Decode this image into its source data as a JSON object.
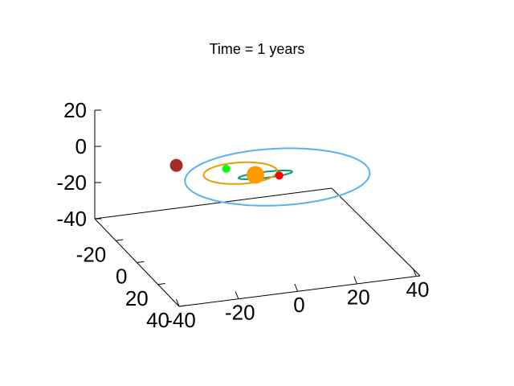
{
  "chart_data": {
    "type": "scatter",
    "title": "Time = 1 years",
    "xlabel": "",
    "ylabel": "",
    "zlabel": "",
    "x_ticks": [
      "-40",
      "-20",
      "0",
      "20",
      "40"
    ],
    "y_ticks": [
      "-20",
      "0",
      "20",
      "40"
    ],
    "z_ticks": [
      "-40",
      "-20",
      "0",
      "20"
    ],
    "xlim": [
      -40,
      40
    ],
    "ylim": [
      -40,
      40
    ],
    "zlim": [
      -40,
      20
    ],
    "grid": false,
    "legend": "none",
    "bodies": [
      {
        "color": "#ff9900",
        "x": 0,
        "y": 0,
        "z": 0,
        "marker": "large"
      },
      {
        "color": "#ff0000",
        "x": 7,
        "y": 3,
        "z": 0,
        "marker": "small"
      },
      {
        "color": "#00ff00",
        "x": -7,
        "y": -8,
        "z": 0,
        "marker": "small"
      },
      {
        "color": "#a52a2a",
        "x": -21,
        "y": -16,
        "z": 0,
        "marker": "medium"
      }
    ],
    "orbits": [
      {
        "color": "#009e73",
        "a": 9,
        "b": 2.5,
        "cx": 3,
        "cy": 1,
        "z": 0
      },
      {
        "color": "#e69f00",
        "a": 12,
        "b": 9,
        "cx": -4,
        "cy": -3,
        "z": 0
      },
      {
        "color": "#56b4e9",
        "a": 30,
        "b": 24,
        "cx": 6,
        "cy": 4,
        "z": 0
      }
    ]
  }
}
